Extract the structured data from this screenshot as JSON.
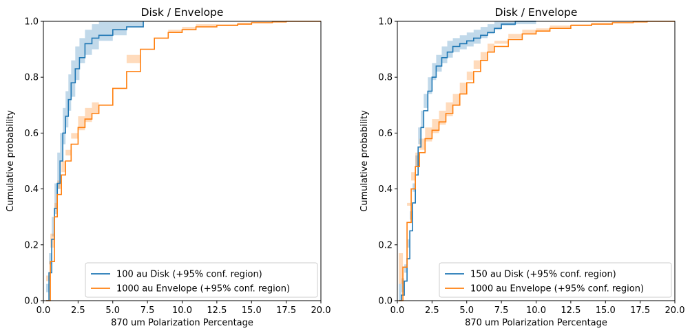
{
  "chart_data": [
    {
      "type": "line",
      "title": "Disk / Envelope",
      "xlabel": "870 um Polarization Percentage",
      "ylabel": "Cumulative probability",
      "xlim": [
        0,
        20
      ],
      "ylim": [
        0,
        1
      ],
      "xticks": [
        "0.0",
        "2.5",
        "5.0",
        "7.5",
        "10.0",
        "12.5",
        "15.0",
        "17.5",
        "20.0"
      ],
      "yticks": [
        "0.0",
        "0.2",
        "0.4",
        "0.6",
        "0.8",
        "1.0"
      ],
      "grid": false,
      "legend_position": "bottom-right",
      "series": [
        {
          "name": "100 au Disk (+95% conf. region)",
          "color": "#1f77b4",
          "x": [
            0.2,
            0.4,
            0.6,
            0.8,
            1.0,
            1.2,
            1.4,
            1.6,
            1.8,
            2.0,
            2.3,
            2.6,
            3.0,
            3.5,
            4.0,
            5.0,
            6.0,
            7.2
          ],
          "y": [
            0.0,
            0.1,
            0.22,
            0.33,
            0.42,
            0.5,
            0.6,
            0.66,
            0.72,
            0.78,
            0.83,
            0.87,
            0.92,
            0.94,
            0.95,
            0.97,
            0.98,
            1.0
          ],
          "lower": [
            0.0,
            0.03,
            0.13,
            0.23,
            0.31,
            0.4,
            0.5,
            0.56,
            0.62,
            0.68,
            0.73,
            0.79,
            0.85,
            0.88,
            0.9,
            0.93,
            0.95,
            0.98
          ],
          "upper": [
            0.06,
            0.17,
            0.3,
            0.42,
            0.53,
            0.6,
            0.69,
            0.75,
            0.81,
            0.86,
            0.91,
            0.94,
            0.97,
            0.99,
            1.0,
            1.0,
            1.0,
            1.0
          ]
        },
        {
          "name": "1000 au Envelope (+95% conf. region)",
          "color": "#ff7f0e",
          "x": [
            0.2,
            0.5,
            0.8,
            1.0,
            1.3,
            1.6,
            2.0,
            2.5,
            3.0,
            3.5,
            4.0,
            5.0,
            6.0,
            7.0,
            8.0,
            9.0,
            10.0,
            11.0,
            12.5,
            14.0,
            15.0,
            16.5,
            17.5,
            20.0
          ],
          "y": [
            0.0,
            0.14,
            0.3,
            0.38,
            0.45,
            0.5,
            0.56,
            0.62,
            0.65,
            0.67,
            0.7,
            0.76,
            0.82,
            0.9,
            0.94,
            0.96,
            0.97,
            0.98,
            0.985,
            0.99,
            0.995,
            0.998,
            1.0,
            1.0
          ],
          "lower": [
            0.0,
            0.09,
            0.24,
            0.33,
            0.4,
            0.46,
            0.52,
            0.58,
            0.61,
            0.64,
            0.67,
            0.73,
            0.79,
            0.88,
            0.92,
            0.95,
            0.96,
            0.97,
            0.98,
            0.985,
            0.99,
            0.995,
            0.998,
            0.999
          ],
          "upper": [
            0.07,
            0.19,
            0.35,
            0.43,
            0.5,
            0.54,
            0.6,
            0.66,
            0.69,
            0.71,
            0.73,
            0.79,
            0.85,
            0.92,
            0.95,
            0.97,
            0.98,
            0.99,
            0.99,
            0.995,
            0.998,
            1.0,
            1.0,
            1.0
          ]
        }
      ]
    },
    {
      "type": "line",
      "title": "Disk / Envelope",
      "xlabel": "870 um Polarization Percentage",
      "ylabel": "Cumulative probability",
      "xlim": [
        0,
        20
      ],
      "ylim": [
        0,
        1
      ],
      "xticks": [
        "0.0",
        "2.5",
        "5.0",
        "7.5",
        "10.0",
        "12.5",
        "15.0",
        "17.5",
        "20.0"
      ],
      "yticks": [
        "0.0",
        "0.2",
        "0.4",
        "0.6",
        "0.8",
        "1.0"
      ],
      "grid": false,
      "legend_position": "bottom-right",
      "series": [
        {
          "name": "150 au Disk (+95% conf. region)",
          "color": "#1f77b4",
          "x": [
            0.1,
            0.3,
            0.5,
            0.7,
            0.9,
            1.1,
            1.3,
            1.5,
            1.7,
            1.9,
            2.2,
            2.5,
            2.8,
            3.2,
            3.6,
            4.0,
            4.5,
            5.0,
            5.5,
            6.0,
            6.5,
            7.0,
            7.5,
            8.5,
            10.0
          ],
          "y": [
            0.0,
            0.02,
            0.07,
            0.15,
            0.25,
            0.35,
            0.45,
            0.55,
            0.62,
            0.68,
            0.75,
            0.8,
            0.84,
            0.87,
            0.89,
            0.91,
            0.92,
            0.93,
            0.94,
            0.95,
            0.96,
            0.975,
            0.99,
            1.0,
            1.0
          ],
          "lower": [
            0.0,
            0.0,
            0.03,
            0.1,
            0.19,
            0.29,
            0.39,
            0.48,
            0.56,
            0.62,
            0.69,
            0.74,
            0.79,
            0.82,
            0.85,
            0.87,
            0.89,
            0.9,
            0.91,
            0.92,
            0.94,
            0.955,
            0.97,
            0.985,
            0.99
          ],
          "upper": [
            0.06,
            0.08,
            0.13,
            0.22,
            0.32,
            0.42,
            0.52,
            0.62,
            0.68,
            0.74,
            0.8,
            0.85,
            0.88,
            0.91,
            0.93,
            0.94,
            0.95,
            0.96,
            0.97,
            0.98,
            0.99,
            1.0,
            1.0,
            1.0,
            1.0
          ]
        },
        {
          "name": "1000 au Envelope (+95% conf. region)",
          "color": "#ff7f0e",
          "x": [
            0.1,
            0.4,
            0.7,
            1.0,
            1.3,
            1.6,
            2.0,
            2.5,
            3.0,
            3.5,
            4.0,
            4.5,
            5.0,
            5.5,
            6.0,
            6.5,
            7.0,
            8.0,
            9.0,
            10.0,
            11.0,
            12.5,
            14.0,
            15.5,
            17.0,
            18.0,
            20.0
          ],
          "y": [
            0.0,
            0.12,
            0.28,
            0.4,
            0.48,
            0.53,
            0.58,
            0.61,
            0.64,
            0.67,
            0.7,
            0.74,
            0.78,
            0.82,
            0.86,
            0.89,
            0.91,
            0.935,
            0.955,
            0.965,
            0.975,
            0.985,
            0.99,
            0.995,
            0.998,
            1.0,
            1.0
          ],
          "lower": [
            0.0,
            0.06,
            0.2,
            0.34,
            0.43,
            0.48,
            0.54,
            0.57,
            0.6,
            0.63,
            0.66,
            0.7,
            0.74,
            0.79,
            0.83,
            0.86,
            0.89,
            0.92,
            0.94,
            0.955,
            0.965,
            0.978,
            0.985,
            0.99,
            0.995,
            0.998,
            0.999
          ],
          "upper": [
            0.17,
            0.2,
            0.35,
            0.46,
            0.53,
            0.58,
            0.62,
            0.65,
            0.68,
            0.71,
            0.74,
            0.78,
            0.82,
            0.86,
            0.89,
            0.92,
            0.93,
            0.955,
            0.97,
            0.975,
            0.985,
            0.99,
            0.995,
            0.998,
            1.0,
            1.0,
            1.0
          ]
        }
      ]
    }
  ]
}
